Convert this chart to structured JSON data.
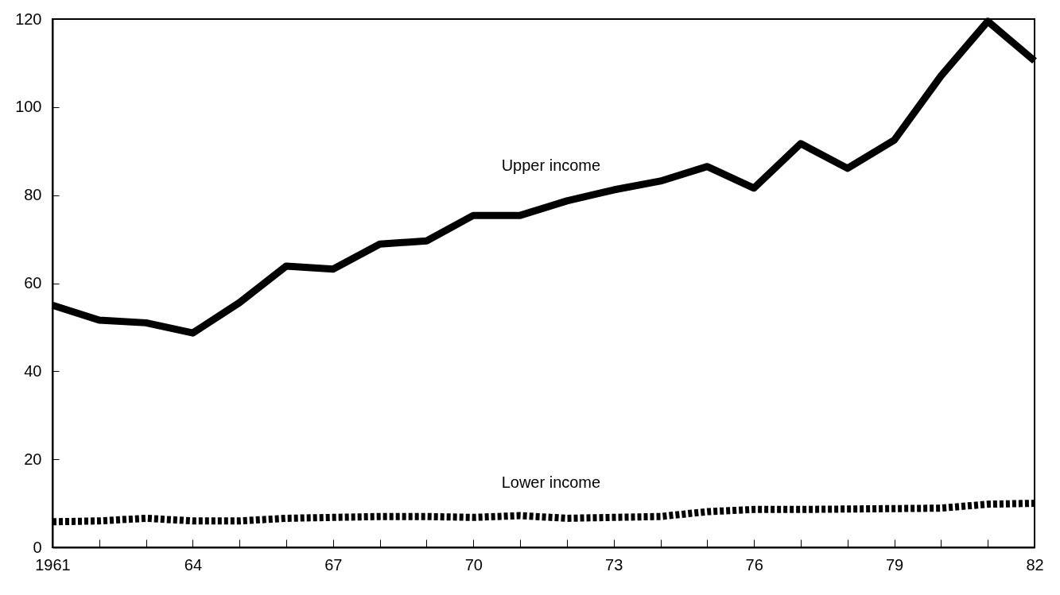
{
  "chart_data": {
    "type": "line",
    "x": [
      1961,
      1962,
      1963,
      1964,
      1965,
      1966,
      1967,
      1968,
      1969,
      1970,
      1971,
      1972,
      1973,
      1974,
      1975,
      1976,
      1977,
      1978,
      1979,
      1980,
      1981,
      1982
    ],
    "series": [
      {
        "name": "Upper income",
        "color": "#000000",
        "line_style": "solid",
        "values": [
          55.0,
          51.6,
          51.0,
          48.7,
          55.6,
          63.9,
          63.2,
          68.9,
          69.6,
          75.4,
          75.4,
          78.7,
          81.2,
          83.2,
          86.5,
          81.6,
          91.7,
          86.1,
          92.5,
          107.1,
          119.5,
          110.5
        ]
      },
      {
        "name": "Lower income",
        "color": "#000000",
        "line_style": "dotted",
        "values": [
          5.8,
          6.0,
          6.6,
          6.0,
          6.0,
          6.6,
          6.8,
          7.0,
          7.0,
          6.8,
          7.2,
          6.6,
          6.8,
          7.0,
          8.1,
          8.6,
          8.6,
          8.7,
          8.8,
          8.9,
          9.8,
          10.0
        ]
      }
    ],
    "xlim": [
      1961,
      1982
    ],
    "xticks": [
      1961,
      {
        "value": 1962,
        "label": null
      },
      {
        "value": 1963,
        "label": null
      },
      {
        "value": 1964,
        "label": "64"
      },
      {
        "value": 1965,
        "label": null
      },
      {
        "value": 1966,
        "label": null
      },
      {
        "value": 1967,
        "label": "67"
      },
      {
        "value": 1968,
        "label": null
      },
      {
        "value": 1969,
        "label": null
      },
      {
        "value": 1970,
        "label": "70"
      },
      {
        "value": 1971,
        "label": null
      },
      {
        "value": 1972,
        "label": null
      },
      {
        "value": 1973,
        "label": "73"
      },
      {
        "value": 1974,
        "label": null
      },
      {
        "value": 1975,
        "label": null
      },
      {
        "value": 1976,
        "label": "76"
      },
      {
        "value": 1977,
        "label": null
      },
      {
        "value": 1978,
        "label": null
      },
      {
        "value": 1979,
        "label": "79"
      },
      {
        "value": 1980,
        "label": null
      },
      {
        "value": 1981,
        "label": null
      },
      {
        "value": 1982,
        "label": "82"
      }
    ],
    "ylim": [
      0,
      120
    ],
    "yticks": [
      0,
      20,
      40,
      60,
      80,
      100,
      120
    ],
    "grid": false
  }
}
